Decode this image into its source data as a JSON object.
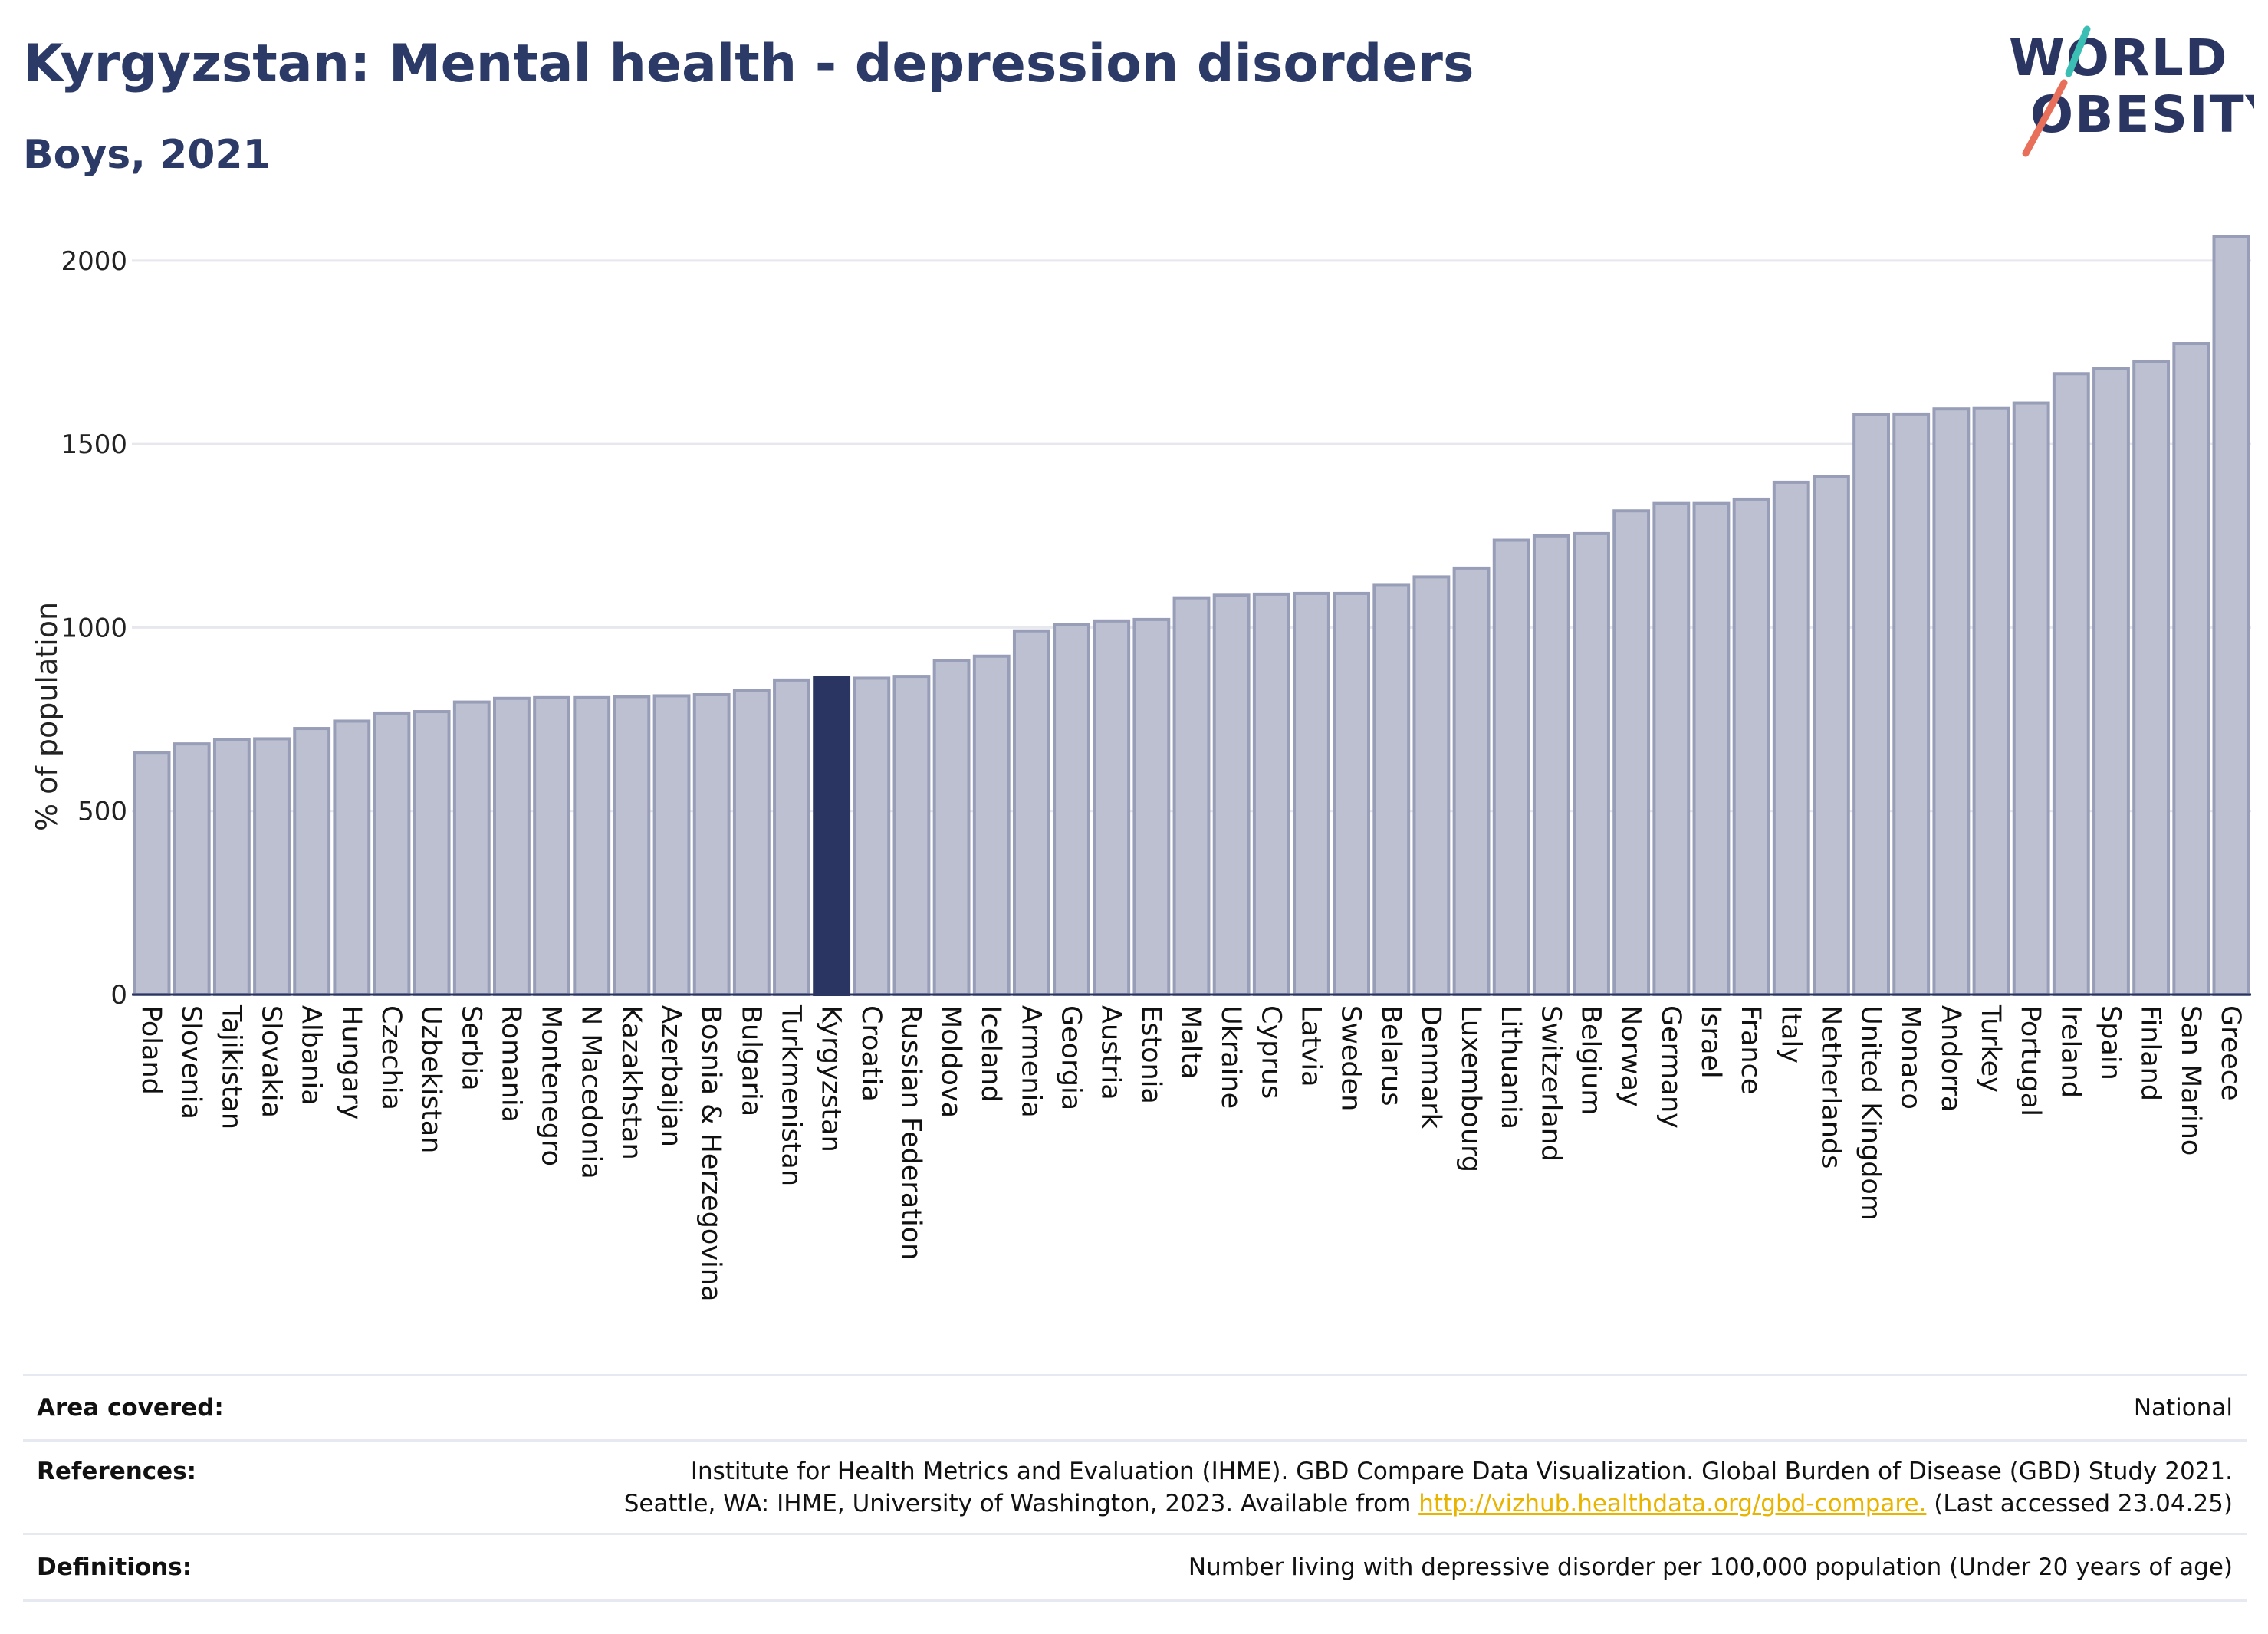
{
  "title": "Kyrgyzstan: Mental health - depression disorders",
  "subtitle": "Boys, 2021",
  "logo": {
    "line1": "WORLD",
    "line2": "OBESITY"
  },
  "colors": {
    "highlight": "#2b3562",
    "bar": "#bcc0d0",
    "bar_stroke": "#989eb8",
    "text": "#2b3a66",
    "link": "#e8b400"
  },
  "chart_data": {
    "type": "bar",
    "ylabel": "% of population",
    "xlabel": "",
    "ylim": [
      0,
      2100
    ],
    "yticks": [
      0,
      500,
      1000,
      1500,
      2000
    ],
    "grid": true,
    "highlight": "Kyrgyzstan",
    "categories": [
      "Poland",
      "Slovenia",
      "Tajikistan",
      "Slovakia",
      "Albania",
      "Hungary",
      "Czechia",
      "Uzbekistan",
      "Serbia",
      "Romania",
      "Montenegro",
      "N Macedonia",
      "Kazakhstan",
      "Azerbaijan",
      "Bosnia & Herzegovina",
      "Bulgaria",
      "Turkmenistan",
      "Kyrgyzstan",
      "Croatia",
      "Russian Federation",
      "Moldova",
      "Iceland",
      "Armenia",
      "Georgia",
      "Austria",
      "Estonia",
      "Malta",
      "Ukraine",
      "Cyprus",
      "Latvia",
      "Sweden",
      "Belarus",
      "Denmark",
      "Luxembourg",
      "Lithuania",
      "Switzerland",
      "Belgium",
      "Norway",
      "Germany",
      "Israel",
      "France",
      "Italy",
      "Netherlands",
      "United Kingdom",
      "Monaco",
      "Andorra",
      "Turkey",
      "Portugal",
      "Ireland",
      "Spain",
      "Finland",
      "San Marino",
      "Greece"
    ],
    "values": [
      660,
      683,
      695,
      697,
      725,
      745,
      767,
      771,
      797,
      807,
      809,
      809,
      812,
      814,
      817,
      829,
      857,
      865,
      862,
      867,
      909,
      922,
      991,
      1008,
      1018,
      1022,
      1081,
      1088,
      1091,
      1093,
      1093,
      1117,
      1138,
      1162,
      1238,
      1250,
      1256,
      1318,
      1338,
      1338,
      1350,
      1396,
      1411,
      1581,
      1582,
      1596,
      1597,
      1612,
      1692,
      1706,
      1726,
      1774,
      2065
    ]
  },
  "info": {
    "area_label": "Area covered:",
    "area_value": "National",
    "references_label": "References:",
    "references_line1": "Institute for Health Metrics and Evaluation (IHME). GBD Compare Data Visualization. Global Burden of Disease (GBD) Study 2021.",
    "references_line2_pre": "Seattle, WA: IHME, University of Washington, 2023. Available from ",
    "references_link": "http://vizhub.healthdata.org/gbd-compare.",
    "references_line2_post": " (Last accessed 23.04.25)",
    "definitions_label": "Definitions:",
    "definitions_value": "Number living with depressive disorder per 100,000 population (Under 20 years of age)"
  }
}
